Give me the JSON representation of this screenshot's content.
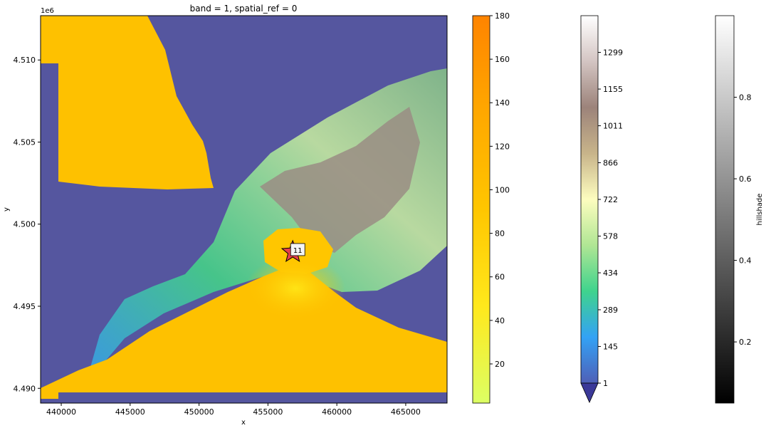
{
  "chart_data": {
    "type": "heatmap",
    "title": "band = 1, spatial_ref = 0",
    "xlabel": "x",
    "ylabel": "y",
    "y_offset_label": "1e6",
    "xlim": [
      438500,
      468000
    ],
    "ylim": [
      4.4891,
      4.5127
    ],
    "x_ticks": [
      440000,
      445000,
      450000,
      455000,
      460000,
      465000
    ],
    "x_tick_labels": [
      "440000",
      "445000",
      "450000",
      "455000",
      "460000",
      "465000"
    ],
    "y_ticks": [
      4.49,
      4.495,
      4.5,
      4.505,
      4.51
    ],
    "y_tick_labels": [
      "4.490",
      "4.495",
      "4.500",
      "4.505",
      "4.510"
    ],
    "marker": {
      "type": "star",
      "x": 456800,
      "y": 4.4983,
      "color": "#e8404a",
      "label": "11"
    },
    "colorbars": [
      {
        "name": "fire-layer",
        "label": "",
        "range": [
          2,
          180
        ],
        "ticks": [
          20,
          40,
          60,
          80,
          100,
          120,
          140,
          160,
          180
        ],
        "tick_labels": [
          "20",
          "40",
          "60",
          "80",
          "100",
          "120",
          "140",
          "160",
          "180"
        ],
        "colors": [
          "#dcff64",
          "#ffe81c",
          "#ffc600",
          "#ffa800",
          "#ff8400"
        ]
      },
      {
        "name": "elevation",
        "label": "",
        "range": [
          1,
          1443
        ],
        "extend": "min",
        "ticks": [
          1,
          145,
          289,
          434,
          578,
          722,
          866,
          1011,
          1155,
          1299
        ],
        "tick_labels": [
          "1",
          "145",
          "289",
          "434",
          "578",
          "722",
          "866",
          "1011",
          "1155",
          "1299"
        ],
        "colors": [
          "#4f5fb7",
          "#33a2f5",
          "#3fd38d",
          "#b0e694",
          "#fdfdbf",
          "#c8b48a",
          "#9c837a",
          "#d3c4c2",
          "#ffffff"
        ],
        "extend_color": "#3b3998"
      },
      {
        "name": "hillshade",
        "label": "hillshade",
        "range": [
          0.05,
          1.0
        ],
        "ticks": [
          0.2,
          0.4,
          0.6,
          0.8
        ],
        "tick_labels": [
          "0.2",
          "0.4",
          "0.6",
          "0.8"
        ],
        "colors": [
          "#000000",
          "#ffffff"
        ]
      }
    ],
    "colors": {
      "water": "#55569f",
      "fire_area": "#fec100",
      "mountain_low": "#3aa7e8",
      "mountain_mid": "#41c989",
      "mountain_high": "#d8dba2",
      "ridge": "#8c7f78"
    }
  }
}
